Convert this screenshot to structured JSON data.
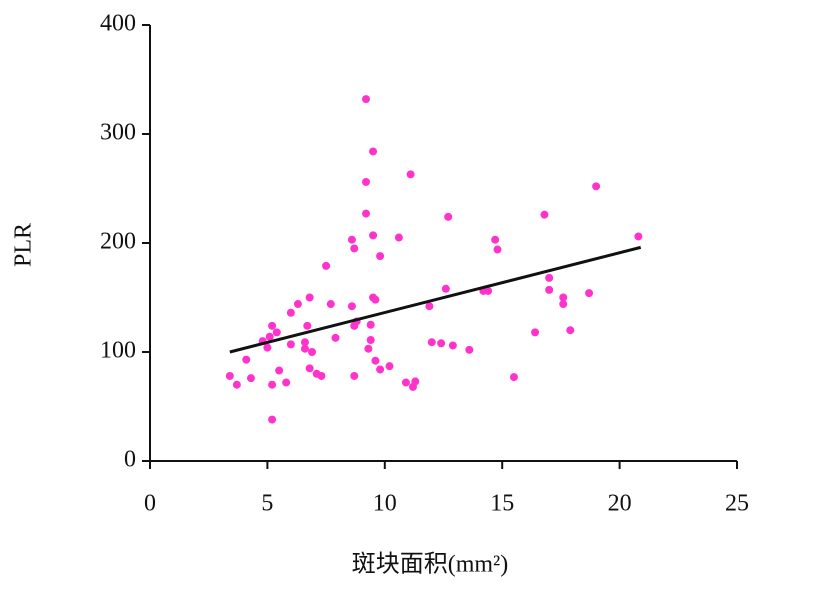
{
  "chart_data": {
    "type": "scatter",
    "xlabel": "斑块面积(mm²)",
    "ylabel": "PLR",
    "xlim": [
      0,
      25
    ],
    "xticks": [
      0,
      5,
      10,
      15,
      20,
      25
    ],
    "ylim": [
      0,
      400
    ],
    "yticks": [
      0,
      100,
      200,
      300,
      400
    ],
    "color": "#ff33cc",
    "x": [
      3.4,
      3.7,
      4.1,
      4.3,
      4.8,
      5.0,
      5.1,
      5.2,
      5.4,
      5.2,
      5.2,
      5.5,
      5.8,
      6.0,
      6.0,
      6.3,
      6.6,
      6.6,
      6.7,
      6.8,
      6.8,
      6.9,
      7.1,
      7.3,
      7.5,
      7.7,
      7.9,
      8.6,
      8.6,
      8.7,
      8.7,
      8.7,
      8.8,
      9.2,
      9.2,
      9.2,
      9.3,
      9.4,
      9.4,
      9.5,
      9.5,
      9.5,
      9.6,
      9.6,
      9.8,
      9.8,
      10.2,
      10.6,
      10.9,
      11.1,
      11.2,
      11.3,
      11.9,
      12.0,
      12.4,
      12.6,
      12.7,
      12.9,
      13.6,
      14.2,
      14.4,
      14.7,
      14.8,
      15.5,
      16.4,
      16.8,
      17.0,
      17.0,
      17.6,
      17.6,
      17.9,
      18.7,
      19.0,
      20.8
    ],
    "values": [
      78,
      70,
      93,
      76,
      110,
      104,
      114,
      124,
      118,
      38,
      70,
      83,
      72,
      107,
      136,
      144,
      109,
      103,
      124,
      150,
      85,
      100,
      80,
      78,
      179,
      144,
      113,
      203,
      142,
      124,
      78,
      195,
      128,
      332,
      256,
      227,
      103,
      125,
      111,
      207,
      150,
      284,
      148,
      92,
      84,
      188,
      87,
      205,
      72,
      263,
      68,
      73,
      142,
      109,
      108,
      158,
      224,
      106,
      102,
      156,
      156,
      203,
      194,
      77,
      118,
      226,
      168,
      157,
      150,
      144,
      120,
      154,
      252,
      206
    ],
    "fit_line": {
      "color": "#111111",
      "x": [
        3.4,
        20.9
      ],
      "values": [
        100,
        196
      ]
    }
  }
}
